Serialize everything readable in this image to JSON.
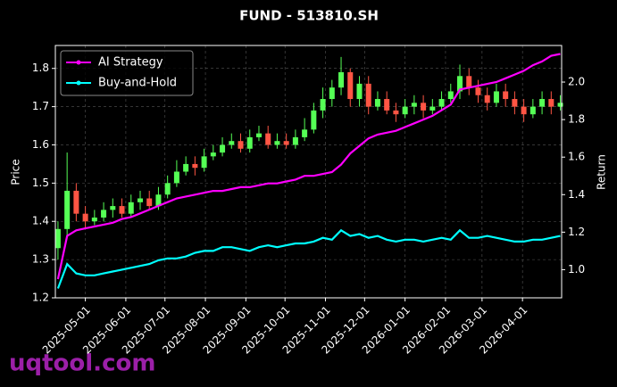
{
  "chart_data": {
    "type": "candlestick",
    "title": "FUND - 513810.SH",
    "y_label": "Price",
    "y2_label": "Return",
    "watermark": "uqtool.com",
    "grid": true,
    "legend": "upper left",
    "up_color": "#55ff55",
    "down_color": "#ff5544",
    "xlim": [
      "2025-04-08",
      "2026-05-01"
    ],
    "xticks": [
      "2025-05-01",
      "2025-06-01",
      "2025-07-01",
      "2025-08-01",
      "2025-09-01",
      "2025-10-01",
      "2025-11-01",
      "2025-12-01",
      "2026-01-01",
      "2026-02-01",
      "2026-03-01",
      "2026-04-01"
    ],
    "ylim": [
      1.2,
      1.86
    ],
    "yticks": [
      1.2,
      1.3,
      1.4,
      1.5,
      1.6,
      1.7,
      1.8
    ],
    "y2lim": [
      0.85,
      2.195
    ],
    "y2ticks": [
      {
        "value": 1,
        "label": "1.0"
      },
      1.2,
      1.4,
      1.6,
      1.8,
      {
        "value": 2,
        "label": "2.0"
      }
    ],
    "x": [
      "2025-04-10",
      "2025-04-17",
      "2025-04-24",
      "2025-05-01",
      "2025-05-08",
      "2025-05-15",
      "2025-05-22",
      "2025-05-29",
      "2025-06-05",
      "2025-06-12",
      "2025-06-19",
      "2025-06-26",
      "2025-07-03",
      "2025-07-10",
      "2025-07-17",
      "2025-07-24",
      "2025-07-31",
      "2025-08-07",
      "2025-08-14",
      "2025-08-21",
      "2025-08-28",
      "2025-09-04",
      "2025-09-11",
      "2025-09-18",
      "2025-09-25",
      "2025-10-02",
      "2025-10-09",
      "2025-10-16",
      "2025-10-23",
      "2025-10-30",
      "2025-11-06",
      "2025-11-13",
      "2025-11-20",
      "2025-11-27",
      "2025-12-04",
      "2025-12-11",
      "2025-12-18",
      "2025-12-25",
      "2026-01-01",
      "2026-01-08",
      "2026-01-15",
      "2026-01-22",
      "2026-01-29",
      "2026-02-05",
      "2026-02-12",
      "2026-02-19",
      "2026-02-26",
      "2026-03-05",
      "2026-03-12",
      "2026-03-19",
      "2026-03-26",
      "2026-04-02",
      "2026-04-09",
      "2026-04-16",
      "2026-04-23",
      "2026-04-30"
    ],
    "open": [
      1.33,
      1.38,
      1.48,
      1.42,
      1.4,
      1.41,
      1.43,
      1.44,
      1.42,
      1.45,
      1.46,
      1.44,
      1.47,
      1.5,
      1.53,
      1.55,
      1.54,
      1.57,
      1.58,
      1.6,
      1.61,
      1.59,
      1.62,
      1.63,
      1.6,
      1.61,
      1.6,
      1.62,
      1.64,
      1.69,
      1.72,
      1.75,
      1.79,
      1.72,
      1.76,
      1.7,
      1.72,
      1.69,
      1.68,
      1.7,
      1.71,
      1.69,
      1.7,
      1.72,
      1.74,
      1.78,
      1.75,
      1.73,
      1.71,
      1.74,
      1.72,
      1.7,
      1.68,
      1.7,
      1.72,
      1.7
    ],
    "high": [
      1.4,
      1.58,
      1.5,
      1.44,
      1.43,
      1.45,
      1.46,
      1.46,
      1.47,
      1.48,
      1.48,
      1.49,
      1.52,
      1.56,
      1.57,
      1.57,
      1.59,
      1.6,
      1.62,
      1.63,
      1.63,
      1.64,
      1.65,
      1.65,
      1.63,
      1.63,
      1.64,
      1.67,
      1.71,
      1.75,
      1.77,
      1.83,
      1.8,
      1.78,
      1.78,
      1.74,
      1.74,
      1.71,
      1.72,
      1.73,
      1.73,
      1.72,
      1.74,
      1.76,
      1.81,
      1.8,
      1.77,
      1.75,
      1.76,
      1.76,
      1.74,
      1.72,
      1.72,
      1.74,
      1.74,
      1.73
    ],
    "low": [
      1.3,
      1.36,
      1.4,
      1.38,
      1.39,
      1.4,
      1.41,
      1.41,
      1.41,
      1.43,
      1.43,
      1.43,
      1.46,
      1.49,
      1.52,
      1.52,
      1.53,
      1.56,
      1.57,
      1.59,
      1.58,
      1.58,
      1.61,
      1.59,
      1.59,
      1.59,
      1.59,
      1.61,
      1.63,
      1.67,
      1.7,
      1.73,
      1.7,
      1.7,
      1.68,
      1.69,
      1.68,
      1.66,
      1.67,
      1.68,
      1.67,
      1.68,
      1.69,
      1.71,
      1.72,
      1.73,
      1.71,
      1.69,
      1.7,
      1.7,
      1.68,
      1.66,
      1.67,
      1.68,
      1.68,
      1.69
    ],
    "close": [
      1.38,
      1.48,
      1.42,
      1.4,
      1.41,
      1.43,
      1.44,
      1.42,
      1.45,
      1.46,
      1.44,
      1.47,
      1.5,
      1.53,
      1.55,
      1.54,
      1.57,
      1.58,
      1.6,
      1.61,
      1.59,
      1.62,
      1.63,
      1.6,
      1.61,
      1.6,
      1.62,
      1.64,
      1.69,
      1.72,
      1.75,
      1.79,
      1.72,
      1.76,
      1.7,
      1.72,
      1.69,
      1.68,
      1.7,
      1.71,
      1.69,
      1.7,
      1.72,
      1.74,
      1.78,
      1.75,
      1.73,
      1.71,
      1.74,
      1.72,
      1.7,
      1.68,
      1.7,
      1.72,
      1.7,
      1.71
    ],
    "series": [
      {
        "name": "AI Strategy",
        "color": "#ff00ff",
        "axis": "y2",
        "values": [
          0.95,
          1.18,
          1.21,
          1.22,
          1.23,
          1.24,
          1.25,
          1.27,
          1.28,
          1.3,
          1.32,
          1.34,
          1.36,
          1.38,
          1.39,
          1.4,
          1.41,
          1.42,
          1.42,
          1.43,
          1.44,
          1.44,
          1.45,
          1.46,
          1.46,
          1.47,
          1.48,
          1.5,
          1.5,
          1.51,
          1.52,
          1.56,
          1.62,
          1.66,
          1.7,
          1.72,
          1.73,
          1.74,
          1.76,
          1.78,
          1.8,
          1.82,
          1.85,
          1.88,
          1.96,
          1.97,
          1.98,
          1.99,
          2.0,
          2.02,
          2.04,
          2.06,
          2.09,
          2.11,
          2.14,
          2.15
        ]
      },
      {
        "name": "Buy-and-Hold",
        "color": "#00ffff",
        "axis": "y2",
        "values": [
          0.9,
          1.03,
          0.98,
          0.97,
          0.97,
          0.98,
          0.99,
          1.0,
          1.01,
          1.02,
          1.03,
          1.05,
          1.06,
          1.06,
          1.07,
          1.09,
          1.1,
          1.1,
          1.12,
          1.12,
          1.11,
          1.1,
          1.12,
          1.13,
          1.12,
          1.13,
          1.14,
          1.14,
          1.15,
          1.17,
          1.16,
          1.21,
          1.18,
          1.19,
          1.17,
          1.18,
          1.16,
          1.15,
          1.16,
          1.16,
          1.15,
          1.16,
          1.17,
          1.16,
          1.21,
          1.17,
          1.17,
          1.18,
          1.17,
          1.16,
          1.15,
          1.15,
          1.16,
          1.16,
          1.17,
          1.18
        ]
      }
    ]
  }
}
